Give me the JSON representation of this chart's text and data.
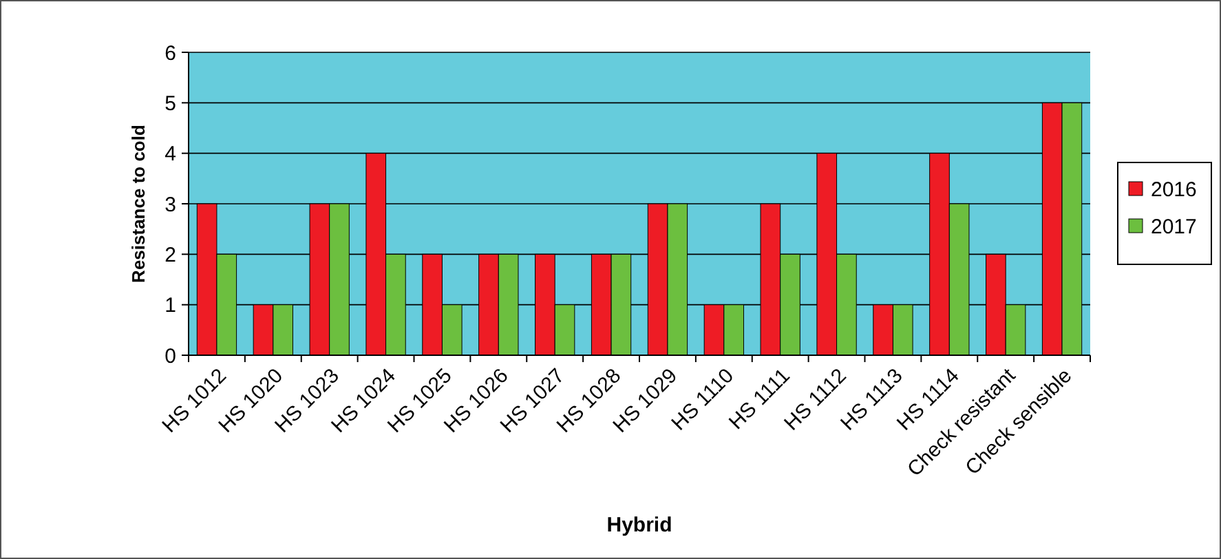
{
  "chart_data": {
    "type": "bar",
    "xlabel": "Hybrid",
    "ylabel": "Resistance to cold",
    "categories": [
      "HS 1012",
      "HS 1020",
      "HS 1023",
      "HS 1024",
      "HS 1025",
      "HS 1026",
      "HS 1027",
      "HS 1028",
      "HS 1029",
      "HS 1110",
      "HS 1111",
      "HS 1112",
      "HS 1113",
      "HS 1114",
      "Check resistant",
      "Check sensible"
    ],
    "series": [
      {
        "name": "2016",
        "color": "#ee1c25",
        "values": [
          3,
          1,
          3,
          4,
          2,
          2,
          2,
          2,
          3,
          1,
          3,
          4,
          1,
          4,
          2,
          5
        ]
      },
      {
        "name": "2017",
        "color": "#6cbf3f",
        "values": [
          2,
          1,
          3,
          2,
          1,
          2,
          1,
          2,
          3,
          1,
          2,
          2,
          1,
          3,
          1,
          5
        ]
      }
    ],
    "ylim": [
      0,
      6
    ],
    "yticks": [
      0,
      1,
      2,
      3,
      4,
      5,
      6
    ],
    "grid": "y",
    "legend": "right"
  }
}
